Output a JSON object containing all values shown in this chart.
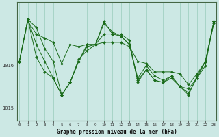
{
  "title": "Graphe pression niveau de la mer (hPa)",
  "background_color": "#cce8e4",
  "plot_bg_color": "#cce8e4",
  "grid_color": "#99ccbb",
  "line_color": "#1a6b1a",
  "marker_color": "#1a6b1a",
  "x_ticks": [
    0,
    1,
    2,
    3,
    4,
    5,
    6,
    7,
    8,
    9,
    10,
    11,
    12,
    13,
    14,
    15,
    16,
    17,
    18,
    19,
    20,
    21,
    22,
    23
  ],
  "ylim_min": 1014.7,
  "ylim_max": 1017.5,
  "series": [
    [
      1016.1,
      1017.1,
      1016.9,
      1016.4,
      1016.1,
      1015.3,
      1015.6,
      1016.1,
      1016.5,
      1016.5,
      1017.0,
      1016.8,
      1016.7,
      1016.5,
      1015.7,
      1016.0,
      1015.75,
      1015.65,
      1015.75,
      1015.5,
      1015.35,
      1015.7,
      1016.1,
      1017.05
    ],
    [
      1016.1,
      1017.1,
      1016.5,
      1016.1,
      1015.7,
      1015.3,
      1015.6,
      1016.1,
      1016.45,
      1016.5,
      1016.75,
      1016.75,
      1016.75,
      1016.6,
      1015.6,
      1015.9,
      1015.65,
      1015.6,
      1015.75,
      1015.5,
      1015.45,
      1015.7,
      1016.0,
      1017.05
    ],
    [
      1016.1,
      1017.1,
      1016.2,
      1015.85,
      1015.7,
      1015.3,
      1015.6,
      1016.15,
      1016.35,
      1016.5,
      1017.05,
      1016.75,
      1016.7,
      1016.5,
      1015.65,
      1015.9,
      1015.65,
      1015.6,
      1015.7,
      1015.5,
      1015.3,
      1015.75,
      1016.1,
      1017.05
    ],
    [
      1016.1,
      1017.05,
      1016.75,
      1016.65,
      1016.55,
      1016.05,
      1016.5,
      1016.45,
      1016.5,
      1016.5,
      1016.55,
      1016.55,
      1016.55,
      1016.45,
      1016.1,
      1016.05,
      1015.85,
      1015.85,
      1015.85,
      1015.8,
      1015.55,
      1015.8,
      1016.1,
      1017.0
    ]
  ]
}
